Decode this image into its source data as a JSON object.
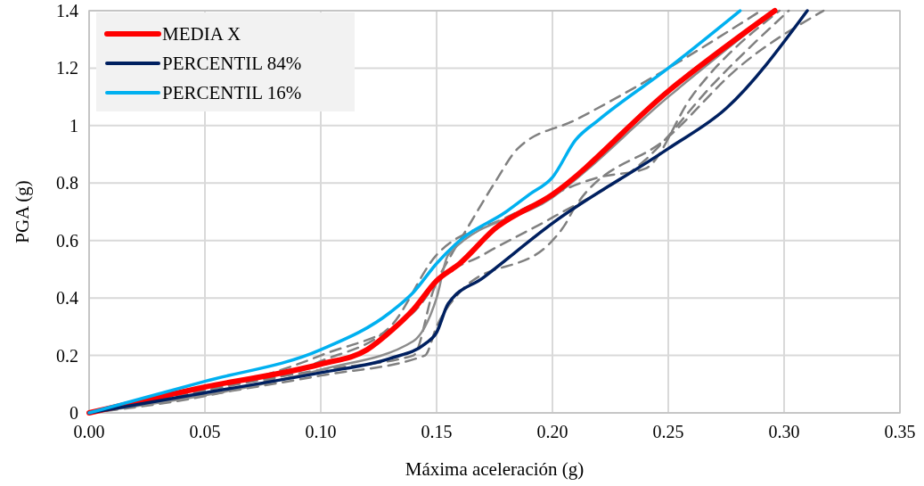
{
  "chart_data": {
    "type": "line",
    "xlabel": "Máxima aceleración  (g)",
    "ylabel": "PGA (g)",
    "xlim": [
      0,
      0.35
    ],
    "ylim": [
      0,
      1.4
    ],
    "xticks": [
      {
        "value": 0,
        "label": "0.00"
      },
      {
        "value": 0.05,
        "label": "0.05"
      },
      {
        "value": 0.1,
        "label": "0.10"
      },
      {
        "value": 0.15,
        "label": "0.15"
      },
      {
        "value": 0.2,
        "label": "0.20"
      },
      {
        "value": 0.25,
        "label": "0.25"
      },
      {
        "value": 0.3,
        "label": "0.30"
      },
      {
        "value": 0.35,
        "label": "0.35"
      }
    ],
    "yticks": [
      0,
      0.2,
      0.4,
      0.6,
      0.8,
      1,
      1.2,
      1.4
    ],
    "grid": true,
    "legend": "top left",
    "marker": "none",
    "series": [
      {
        "color": "#808080",
        "line_style": "dashed",
        "x": [
          0,
          0.1,
          0.14,
          0.16,
          0.175,
          0.185,
          0.21,
          0.25,
          0.29
        ],
        "values": [
          0,
          0.2,
          0.35,
          0.6,
          0.8,
          0.92,
          1.02,
          1.2,
          1.4
        ]
      },
      {
        "color": "#808080",
        "line_style": "dashed",
        "x": [
          0,
          0.1,
          0.145,
          0.15,
          0.16,
          0.2,
          0.205,
          0.21,
          0.25,
          0.28,
          0.317
        ],
        "values": [
          0,
          0.13,
          0.2,
          0.3,
          0.42,
          0.6,
          0.65,
          0.72,
          0.96,
          1.2,
          1.4
        ]
      },
      {
        "color": "#808080",
        "line_style": "dashed",
        "x": [
          0,
          0.1,
          0.14,
          0.15,
          0.17,
          0.2,
          0.24,
          0.27,
          0.302
        ],
        "values": [
          0,
          0.15,
          0.2,
          0.45,
          0.55,
          0.68,
          0.88,
          1.15,
          1.4
        ]
      },
      {
        "color": "#808080",
        "line_style": "dashed",
        "x": [
          0,
          0.1,
          0.13,
          0.15,
          0.18,
          0.22,
          0.24,
          0.26,
          0.298
        ],
        "values": [
          0,
          0.18,
          0.3,
          0.55,
          0.68,
          0.82,
          0.85,
          1.1,
          1.4
        ]
      },
      {
        "color": "#8c8c8c",
        "line_style": "solid",
        "x": [
          0,
          0.1,
          0.14,
          0.15,
          0.155,
          0.2,
          0.25,
          0.296
        ],
        "values": [
          0,
          0.15,
          0.25,
          0.4,
          0.55,
          0.75,
          1.1,
          1.4
        ]
      },
      {
        "name": "MEDIA X",
        "color": "#ff0000",
        "line_style": "solid",
        "x": [
          0,
          0.05,
          0.1,
          0.12,
          0.131,
          0.14,
          0.15,
          0.16,
          0.175,
          0.2,
          0.25,
          0.296
        ],
        "values": [
          0,
          0.09,
          0.17,
          0.22,
          0.29,
          0.36,
          0.46,
          0.52,
          0.64,
          0.76,
          1.12,
          1.4
        ]
      },
      {
        "name": "PERCENTIL 84%",
        "color": "#002060",
        "line_style": "solid",
        "x": [
          0,
          0.05,
          0.1,
          0.13,
          0.145,
          0.15,
          0.155,
          0.17,
          0.2,
          0.25,
          0.275,
          0.31
        ],
        "values": [
          0,
          0.07,
          0.14,
          0.19,
          0.24,
          0.28,
          0.38,
          0.47,
          0.66,
          0.92,
          1.06,
          1.4
        ]
      },
      {
        "name": "PERCENTIL 16%",
        "color": "#00b0f0",
        "line_style": "solid",
        "x": [
          0,
          0.05,
          0.1,
          0.13,
          0.14,
          0.15,
          0.16,
          0.18,
          0.19,
          0.2,
          0.21,
          0.22,
          0.25,
          0.281
        ],
        "values": [
          0,
          0.11,
          0.22,
          0.35,
          0.42,
          0.52,
          0.6,
          0.7,
          0.76,
          0.82,
          0.95,
          1.02,
          1.2,
          1.4
        ]
      }
    ]
  }
}
